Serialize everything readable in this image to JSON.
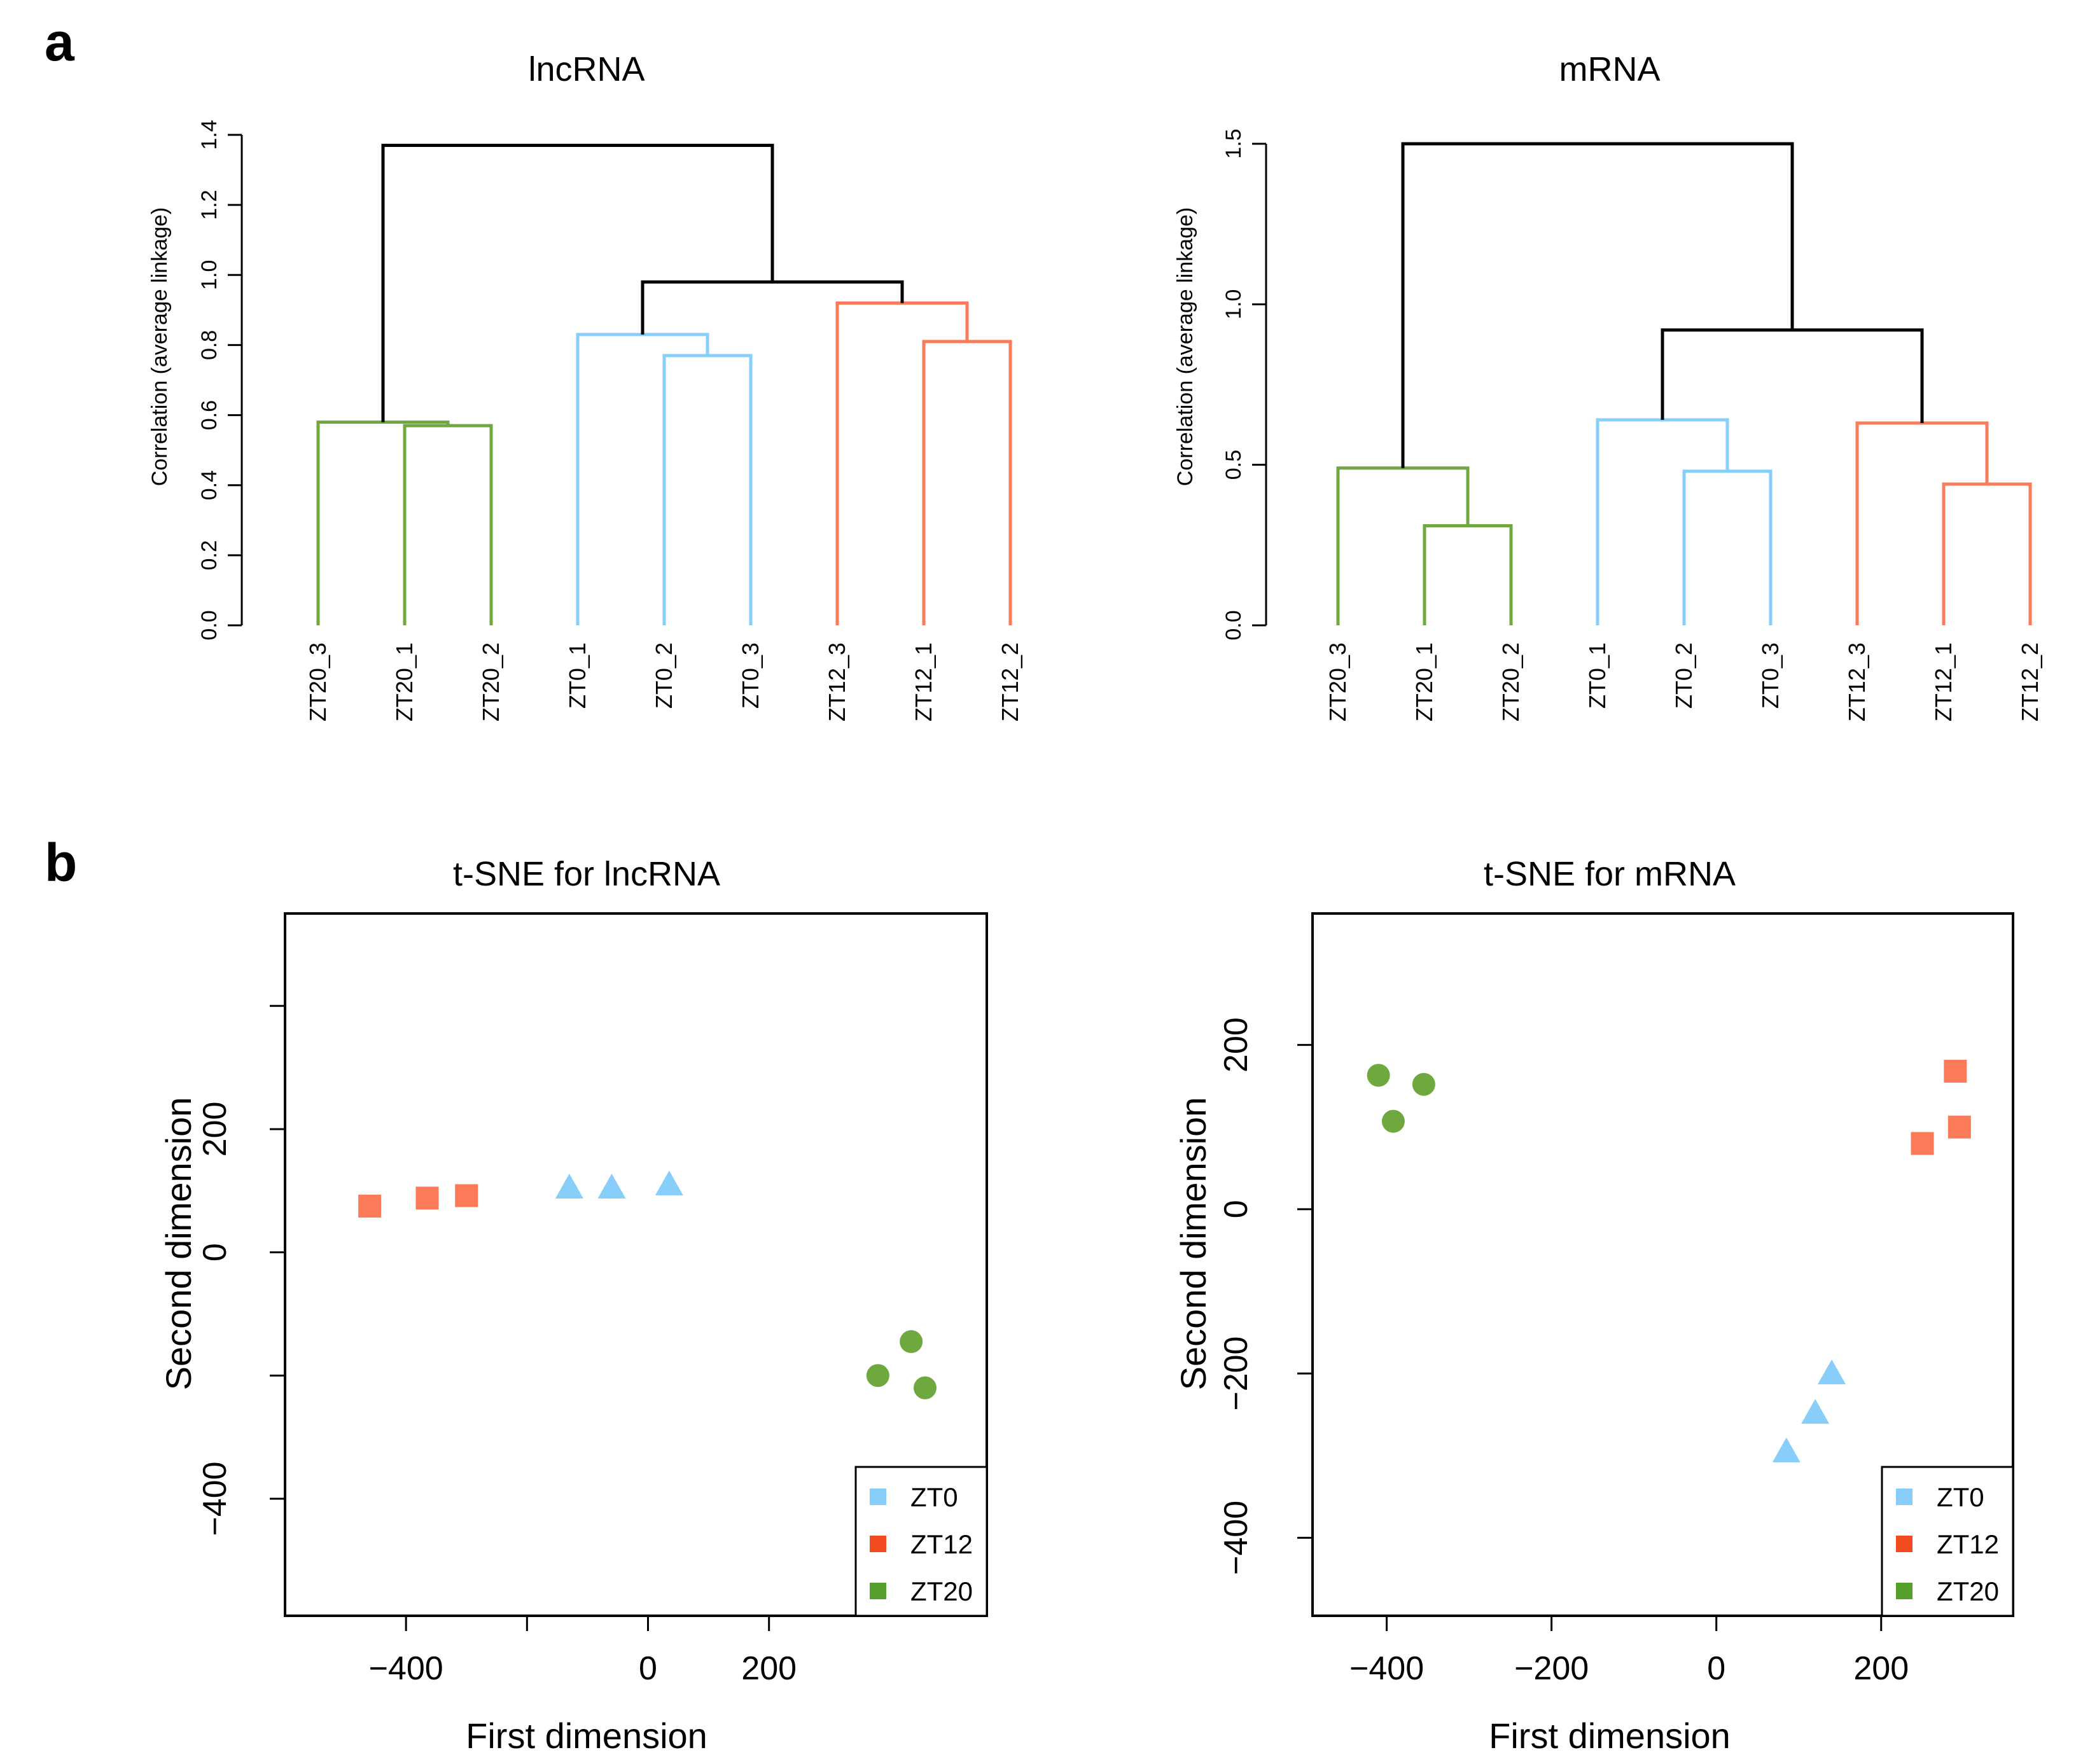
{
  "panels": {
    "a": "a",
    "b": "b"
  },
  "colors": {
    "ZT0": "#87CEFA",
    "ZT12": "#FA7A5A",
    "ZT20": "#6FA83E",
    "root": "#000000"
  },
  "legend_colors": {
    "ZT0": "#87CEFA",
    "ZT12": "#F04A1E",
    "ZT20": "#55A02A"
  },
  "chart_data": [
    {
      "type": "dendrogram",
      "title": "lncRNA",
      "ylabel": "Correlation (average linkage)",
      "ylim": [
        0,
        1.4
      ],
      "yticks": [
        "0.0",
        "0.2",
        "0.4",
        "0.6",
        "0.8",
        "1.0",
        "1.2",
        "1.4"
      ],
      "ytick_values": [
        0,
        0.2,
        0.4,
        0.6,
        0.8,
        1.0,
        1.2,
        1.4
      ],
      "leaves": [
        "ZT20_3",
        "ZT20_1",
        "ZT20_2",
        "ZT0_1",
        "ZT0_2",
        "ZT0_3",
        "ZT12_3",
        "ZT12_1",
        "ZT12_2"
      ],
      "leaf_groups": [
        "ZT20",
        "ZT20",
        "ZT20",
        "ZT0",
        "ZT0",
        "ZT0",
        "ZT12",
        "ZT12",
        "ZT12"
      ],
      "merges": [
        {
          "left": "ZT20_1",
          "right": "ZT20_2",
          "height": 0.57,
          "group": "ZT20"
        },
        {
          "left": "ZT20_3",
          "right": "m1",
          "height": 0.58,
          "group": "ZT20"
        },
        {
          "left": "ZT0_2",
          "right": "ZT0_3",
          "height": 0.77,
          "group": "ZT0"
        },
        {
          "left": "ZT0_1",
          "right": "m3",
          "height": 0.83,
          "group": "ZT0"
        },
        {
          "left": "ZT12_1",
          "right": "ZT12_2",
          "height": 0.81,
          "group": "ZT12"
        },
        {
          "left": "ZT12_3",
          "right": "m5",
          "height": 0.92,
          "group": "ZT12"
        },
        {
          "left": "m4",
          "right": "m6",
          "height": 0.98,
          "group": "root"
        },
        {
          "left": "m2",
          "right": "m7",
          "height": 1.37,
          "group": "root"
        }
      ]
    },
    {
      "type": "dendrogram",
      "title": "mRNA",
      "ylabel": "Correlation (average linkage)",
      "ylim": [
        0,
        1.5
      ],
      "yticks": [
        "0.0",
        "0.5",
        "1.0",
        "1.5"
      ],
      "ytick_values": [
        0,
        0.5,
        1.0,
        1.5
      ],
      "leaves": [
        "ZT20_3",
        "ZT20_1",
        "ZT20_2",
        "ZT0_1",
        "ZT0_2",
        "ZT0_3",
        "ZT12_3",
        "ZT12_1",
        "ZT12_2"
      ],
      "leaf_groups": [
        "ZT20",
        "ZT20",
        "ZT20",
        "ZT0",
        "ZT0",
        "ZT0",
        "ZT12",
        "ZT12",
        "ZT12"
      ],
      "merges": [
        {
          "left": "ZT20_1",
          "right": "ZT20_2",
          "height": 0.31,
          "group": "ZT20"
        },
        {
          "left": "ZT20_3",
          "right": "m1",
          "height": 0.49,
          "group": "ZT20"
        },
        {
          "left": "ZT0_2",
          "right": "ZT0_3",
          "height": 0.48,
          "group": "ZT0"
        },
        {
          "left": "ZT0_1",
          "right": "m3",
          "height": 0.64,
          "group": "ZT0"
        },
        {
          "left": "ZT12_1",
          "right": "ZT12_2",
          "height": 0.44,
          "group": "ZT12"
        },
        {
          "left": "ZT12_3",
          "right": "m5",
          "height": 0.63,
          "group": "ZT12"
        },
        {
          "left": "m4",
          "right": "m6",
          "height": 0.92,
          "group": "root"
        },
        {
          "left": "m2",
          "right": "m7",
          "height": 1.5,
          "group": "root"
        }
      ]
    },
    {
      "type": "scatter",
      "title": "t-SNE for lncRNA",
      "xlabel": "First dimension",
      "ylabel": "Second dimension",
      "xlim": [
        -600,
        560
      ],
      "ylim": [
        -590,
        550
      ],
      "xticks": [
        -400,
        -200,
        0,
        200
      ],
      "xtick_labels": [
        "−400",
        "",
        "0",
        "200"
      ],
      "yticks": [
        -400,
        -200,
        0,
        200,
        400
      ],
      "ytick_labels": [
        "−400",
        "",
        "0",
        "200",
        ""
      ],
      "legend_position": "bottom-right",
      "series": [
        {
          "name": "ZT0",
          "marker": "triangle",
          "points": [
            [
              -130,
              105
            ],
            [
              -60,
              105
            ],
            [
              35,
              110
            ]
          ]
        },
        {
          "name": "ZT12",
          "marker": "square",
          "points": [
            [
              -460,
              75
            ],
            [
              -365,
              88
            ],
            [
              -300,
              92
            ]
          ]
        },
        {
          "name": "ZT20",
          "marker": "circle",
          "points": [
            [
              380,
              -200
            ],
            [
              435,
              -145
            ],
            [
              458,
              -220
            ]
          ]
        }
      ]
    },
    {
      "type": "scatter",
      "title": "t-SNE for mRNA",
      "xlabel": "First dimension",
      "ylabel": "Second dimension",
      "xlim": [
        -490,
        360
      ],
      "ylim": [
        -495,
        360
      ],
      "xticks": [
        -400,
        -200,
        0,
        200
      ],
      "xtick_labels": [
        "−400",
        "−200",
        "0",
        "200"
      ],
      "yticks": [
        -400,
        -200,
        0,
        200
      ],
      "ytick_labels": [
        "−400",
        "−200",
        "0",
        "200"
      ],
      "legend_position": "bottom-right",
      "series": [
        {
          "name": "ZT0",
          "marker": "triangle",
          "points": [
            [
              85,
              -295
            ],
            [
              120,
              -248
            ],
            [
              140,
              -200
            ]
          ]
        },
        {
          "name": "ZT12",
          "marker": "square",
          "points": [
            [
              250,
              80
            ],
            [
              290,
              168
            ],
            [
              295,
              100
            ]
          ]
        },
        {
          "name": "ZT20",
          "marker": "circle",
          "points": [
            [
              -410,
              163
            ],
            [
              -392,
              107
            ],
            [
              -355,
              152
            ]
          ]
        }
      ]
    }
  ]
}
